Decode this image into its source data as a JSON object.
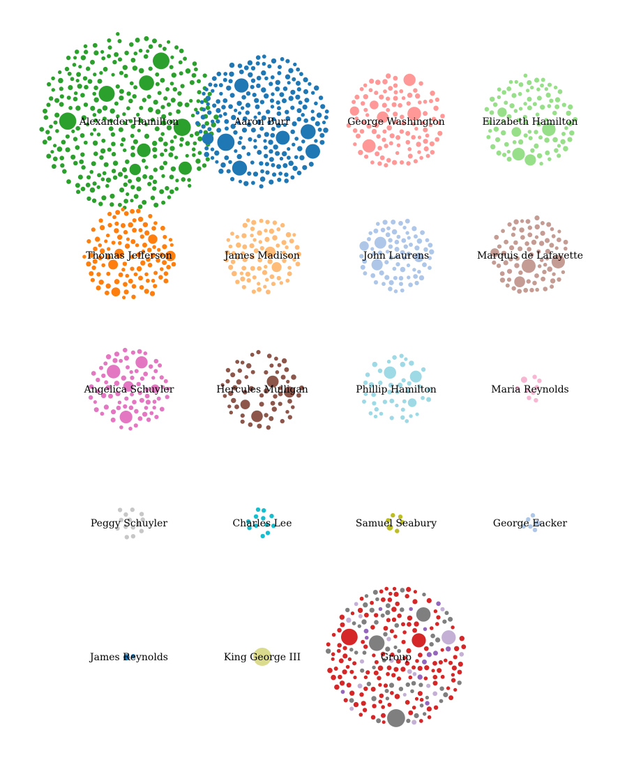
{
  "chart_data": {
    "type": "bubble-clusters",
    "clusters": [
      {
        "name": "Alexander Hamilton",
        "color": "#2ca02c",
        "count": 330,
        "big": 8
      },
      {
        "name": "Aaron Burr",
        "color": "#1f77b4",
        "count": 250,
        "big": 7
      },
      {
        "name": "George Washington",
        "color": "#ff9896",
        "count": 110,
        "big": 6
      },
      {
        "name": "Elizabeth Hamilton",
        "color": "#98df8a",
        "count": 95,
        "big": 5
      },
      {
        "name": "Thomas Jefferson",
        "color": "#ff7f0e",
        "count": 110,
        "big": 5
      },
      {
        "name": "James Madison",
        "color": "#ffbb78",
        "count": 85,
        "big": 2
      },
      {
        "name": "John Laurens",
        "color": "#aec7e8",
        "count": 80,
        "big": 4
      },
      {
        "name": "Marquis de Lafayette",
        "color": "#c49c94",
        "count": 85,
        "big": 4
      },
      {
        "name": "Angelica Schuyler",
        "color": "#e377c2",
        "count": 80,
        "big": 5
      },
      {
        "name": "Hercules Mulligan",
        "color": "#8c564b",
        "count": 60,
        "big": 4
      },
      {
        "name": "Phillip Hamilton",
        "color": "#9edae5",
        "count": 45,
        "big": 3
      },
      {
        "name": "Maria Reynolds",
        "color": "#f7b6d2",
        "count": 9,
        "big": 1
      },
      {
        "name": "Peggy Schuyler",
        "color": "#c7c7c7",
        "count": 14,
        "big": 0
      },
      {
        "name": "Charles Lee",
        "color": "#17becf",
        "count": 12,
        "big": 0
      },
      {
        "name": "Samuel Seabury",
        "color": "#bcbd22",
        "count": 6,
        "big": 1
      },
      {
        "name": "George Eacker",
        "color": "#aec7e8",
        "count": 6,
        "big": 1
      },
      {
        "name": "James Reynolds",
        "color": "#1f77b4",
        "count": 3,
        "big": 1
      },
      {
        "name": "King George III",
        "color": "#dbdb8d",
        "count": 1,
        "big": 1
      },
      {
        "name": "Group",
        "color": "#d62728",
        "count": 240,
        "big": 6,
        "mix": [
          {
            "color": "#d62728",
            "share": 0.62
          },
          {
            "color": "#7f7f7f",
            "share": 0.22
          },
          {
            "color": "#c5b0d5",
            "share": 0.1
          },
          {
            "color": "#9467bd",
            "share": 0.06
          }
        ]
      }
    ]
  }
}
